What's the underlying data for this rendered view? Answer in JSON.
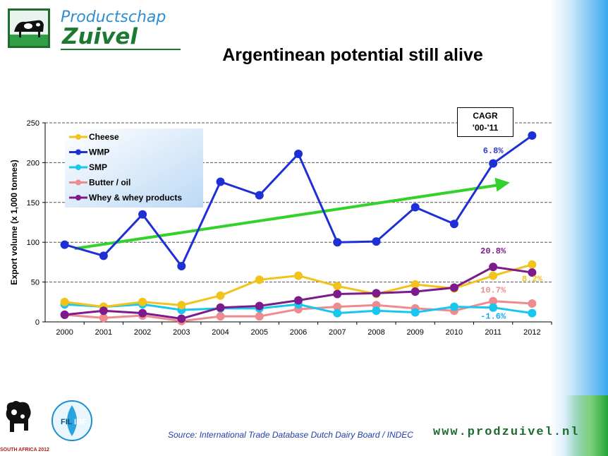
{
  "header": {
    "logo_line1": "Productschap",
    "logo_line2": "Zuivel",
    "title": "Argentinean potential still alive"
  },
  "cagr": {
    "line1": "CAGR",
    "line2": "’00-’11"
  },
  "chart_data": {
    "type": "line",
    "title": "",
    "ylabel": "Export volume (x 1,000 tonnes)",
    "xlabel": "",
    "ylim": [
      0,
      250
    ],
    "yticks": [
      0,
      50,
      100,
      150,
      200,
      250
    ],
    "grid": "horizontal dashed",
    "legend": "top-left",
    "x": [
      "2000",
      "2001",
      "2002",
      "2003",
      "2004",
      "2005",
      "2006",
      "2007",
      "2008",
      "2009",
      "2010",
      "2011",
      "2012"
    ],
    "series": [
      {
        "name": "Cheese",
        "color": "#f2c31a",
        "values": [
          25,
          19,
          25,
          21,
          33,
          53,
          58,
          45,
          35,
          47,
          42,
          58,
          72
        ]
      },
      {
        "name": "WMP",
        "color": "#1f2fd6",
        "values": [
          97,
          83,
          135,
          70,
          176,
          159,
          211,
          100,
          101,
          144,
          123,
          199,
          234
        ]
      },
      {
        "name": "SMP",
        "color": "#19c6ef",
        "values": [
          22,
          19,
          22,
          15,
          17,
          17,
          22,
          11,
          14,
          12,
          19,
          18,
          11
        ]
      },
      {
        "name": "Butter / oil",
        "color": "#ef8a8e",
        "values": [
          9,
          5,
          8,
          1,
          7,
          7,
          16,
          19,
          21,
          17,
          14,
          26,
          23
        ]
      },
      {
        "name": "Whey & whey products",
        "color": "#7d1a8c",
        "values": [
          9,
          14,
          11,
          4,
          18,
          20,
          27,
          35,
          36,
          38,
          43,
          69,
          62
        ]
      }
    ],
    "annotations": [
      {
        "text": "6.8%",
        "color": "#2f3fc4",
        "x": "2011",
        "y": 212
      },
      {
        "text": "20.8%",
        "color": "#7d1a8c",
        "x": "2011",
        "y": 86
      },
      {
        "text": "8.2%",
        "color": "#f2c31a",
        "x": "2012",
        "y": 51
      },
      {
        "text": "10.7%",
        "color": "#ef8a8e",
        "x": "2011",
        "y": 37
      },
      {
        "text": "-1.6%",
        "color": "#19a8ef",
        "x": "2011",
        "y": 4
      }
    ],
    "trend_arrow": {
      "color": "#33d12b",
      "from": {
        "x": "2000",
        "y": 92
      },
      "to": {
        "x": "2011.5",
        "y": 175
      }
    }
  },
  "footer": {
    "source": "Source: International Trade Database Dutch Dairy Board / INDEC",
    "website": "www.prodzuivel.nl",
    "left_logo_text": "SOUTH AFRICA 2012",
    "fil_text": "FIL IDF"
  }
}
